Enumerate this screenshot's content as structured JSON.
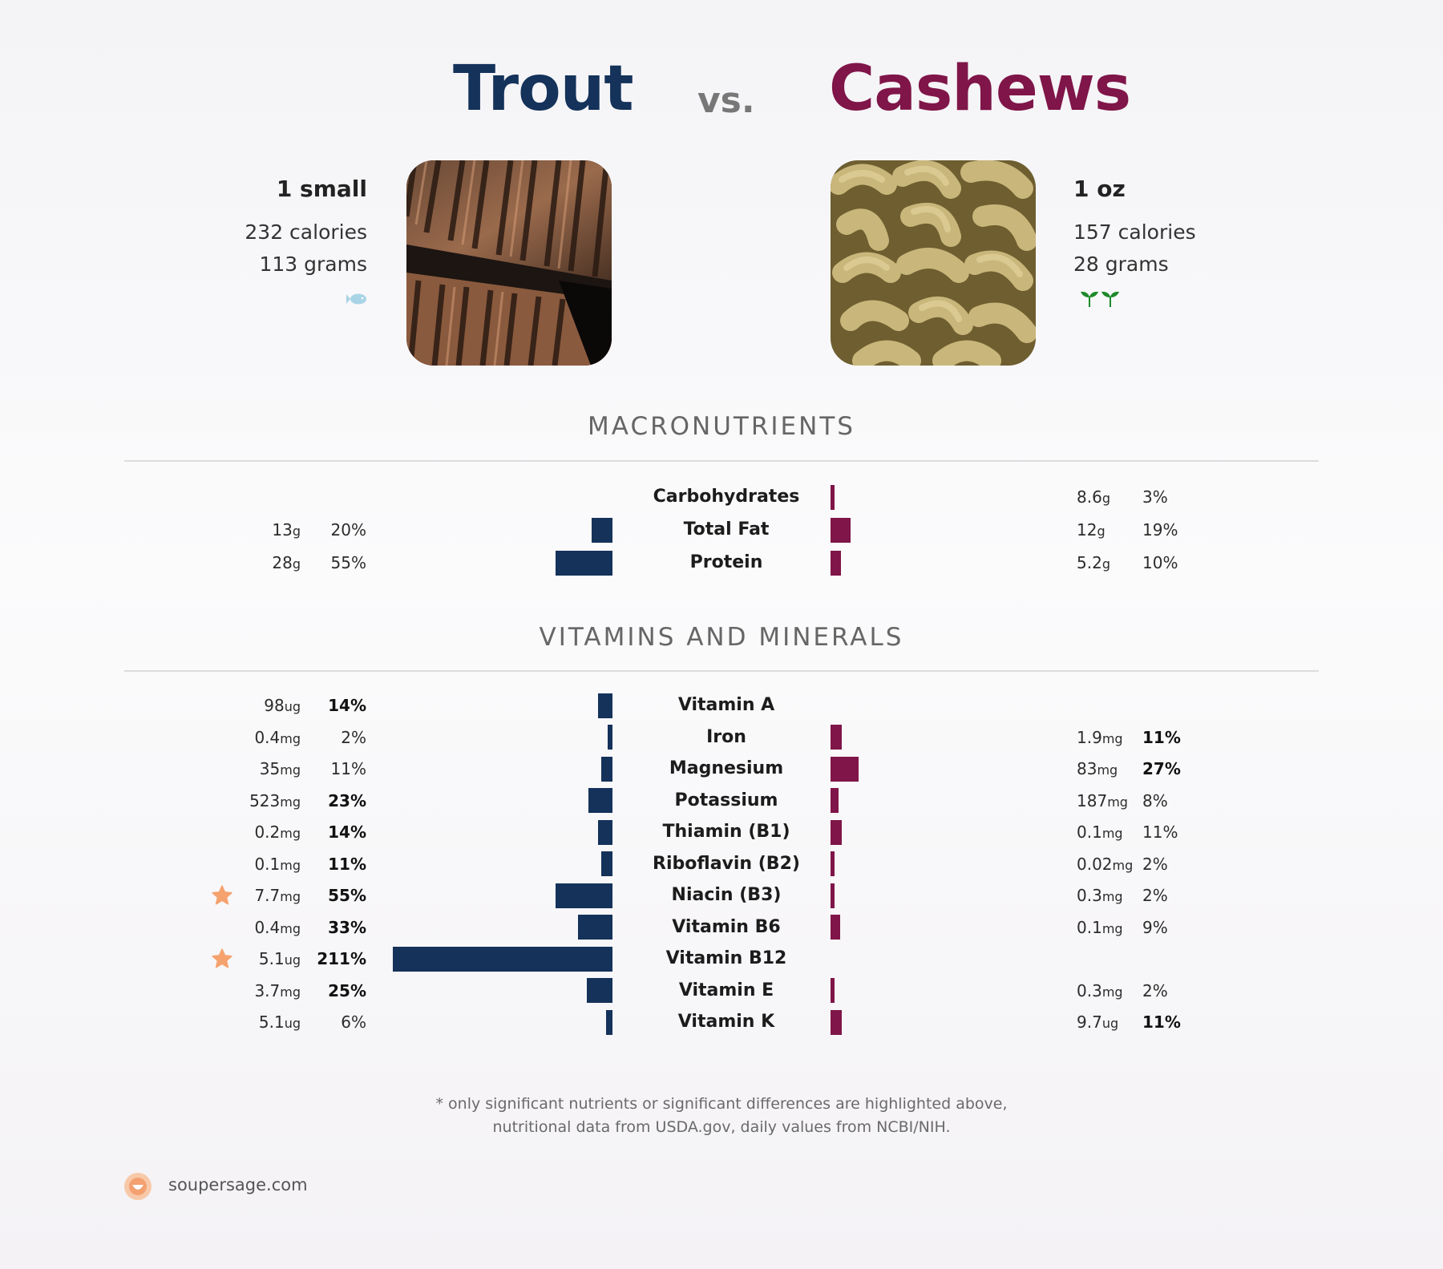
{
  "header": {
    "left_title": "Trout",
    "vs": "vs.",
    "right_title": "Cashews"
  },
  "left_food": {
    "serving": "1 small",
    "calories": "232 calories",
    "grams": "113 grams",
    "icon": "fish-icon",
    "icon_color": "#a8d4e6",
    "color": "#14325a"
  },
  "right_food": {
    "serving": "1 oz",
    "calories": "157 calories",
    "grams": "28 grams",
    "icon": "sprout-icon",
    "icon_color": "#1e8a2a",
    "color": "#7f1548"
  },
  "sections": {
    "macros_title": "MACRONUTRIENTS",
    "vitamins_title": "VITAMINS AND MINERALS"
  },
  "chart_data": [
    {
      "type": "bar",
      "orientation": "horizontal-diverging",
      "title": "MACRONUTRIENTS",
      "categories": [
        "Carbohydrates",
        "Total Fat",
        "Protein"
      ],
      "series": [
        {
          "name": "Trout",
          "amounts": [
            null,
            "13",
            "28"
          ],
          "units": [
            null,
            "g",
            "g"
          ],
          "values": [
            0,
            20,
            55
          ],
          "labels": [
            null,
            "20%",
            "55%"
          ],
          "bold": [
            false,
            false,
            false
          ]
        },
        {
          "name": "Cashews",
          "amounts": [
            "8.6",
            "12",
            "5.2"
          ],
          "units": [
            "g",
            "g",
            "g"
          ],
          "values": [
            3,
            19,
            10
          ],
          "labels": [
            "3%",
            "19%",
            "10%"
          ],
          "bold": [
            false,
            false,
            false
          ]
        }
      ]
    },
    {
      "type": "bar",
      "orientation": "horizontal-diverging",
      "title": "VITAMINS AND MINERALS",
      "categories": [
        "Vitamin A",
        "Iron",
        "Magnesium",
        "Potassium",
        "Thiamin (B1)",
        "Riboflavin (B2)",
        "Niacin (B3)",
        "Vitamin B6",
        "Vitamin B12",
        "Vitamin E",
        "Vitamin K"
      ],
      "stars_left": [
        false,
        false,
        false,
        false,
        false,
        false,
        true,
        false,
        true,
        false,
        false
      ],
      "series": [
        {
          "name": "Trout",
          "amounts": [
            "98",
            "0.4",
            "35",
            "523",
            "0.2",
            "0.1",
            "7.7",
            "0.4",
            "5.1",
            "3.7",
            "5.1"
          ],
          "units": [
            "ug",
            "mg",
            "mg",
            "mg",
            "mg",
            "mg",
            "mg",
            "mg",
            "ug",
            "mg",
            "ug"
          ],
          "values": [
            14,
            2,
            11,
            23,
            14,
            11,
            55,
            33,
            211,
            25,
            6
          ],
          "labels": [
            "14%",
            "2%",
            "11%",
            "23%",
            "14%",
            "11%",
            "55%",
            "33%",
            "211%",
            "25%",
            "6%"
          ],
          "bold": [
            true,
            false,
            false,
            true,
            true,
            true,
            true,
            true,
            true,
            true,
            false
          ]
        },
        {
          "name": "Cashews",
          "amounts": [
            null,
            "1.9",
            "83",
            "187",
            "0.1",
            "0.02",
            "0.3",
            "0.1",
            null,
            "0.3",
            "9.7"
          ],
          "units": [
            null,
            "mg",
            "mg",
            "mg",
            "mg",
            "mg",
            "mg",
            "mg",
            null,
            "mg",
            "ug"
          ],
          "values": [
            0,
            11,
            27,
            8,
            11,
            2,
            2,
            9,
            0,
            2,
            11
          ],
          "labels": [
            null,
            "11%",
            "27%",
            "8%",
            "11%",
            "2%",
            "2%",
            "9%",
            null,
            "2%",
            "11%"
          ],
          "bold": [
            false,
            true,
            true,
            false,
            false,
            false,
            false,
            false,
            false,
            false,
            true
          ]
        }
      ]
    }
  ],
  "footnote": {
    "line1": "* only significant nutrients or significant differences are highlighted above,",
    "line2": "nutritional data from USDA.gov, daily values from NCBI/NIH."
  },
  "brand": {
    "name": "soupersage.com",
    "logo_color": "#f4a070"
  }
}
